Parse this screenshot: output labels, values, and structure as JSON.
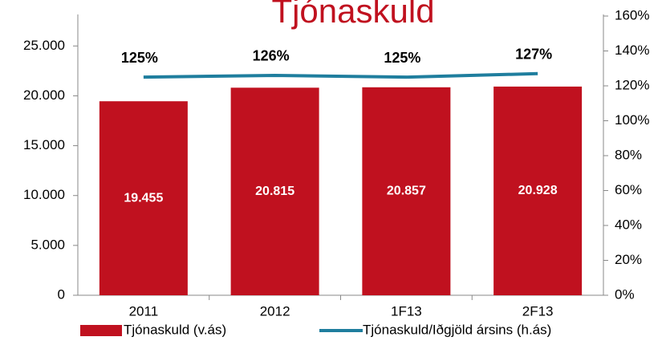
{
  "chart_data": {
    "type": "bar",
    "title": "Tjónaskuld",
    "categories": [
      "2011",
      "2012",
      "1F13",
      "2F13"
    ],
    "series": [
      {
        "name": "Tjónaskuld (v.ás)",
        "type": "bar",
        "color": "#c0111f",
        "values": [
          19455,
          20815,
          20857,
          20928
        ],
        "value_labels": [
          "19.455",
          "20.815",
          "20.857",
          "20.928"
        ]
      },
      {
        "name": "Tjónaskuld/Iðgjöld ársins (h.ás)",
        "type": "line",
        "axis": "y2",
        "color": "#1f7e9e",
        "values": [
          125,
          126,
          125,
          127
        ],
        "value_labels": [
          "125%",
          "126%",
          "125%",
          "127%"
        ]
      }
    ],
    "ylim": [
      0,
      28000
    ],
    "yticks": [
      {
        "value": 0,
        "label": "0"
      },
      {
        "value": 5000,
        "label": "5.000"
      },
      {
        "value": 10000,
        "label": "10.000"
      },
      {
        "value": 15000,
        "label": "15.000"
      },
      {
        "value": 20000,
        "label": "20.000"
      },
      {
        "value": 25000,
        "label": "25.000"
      }
    ],
    "y2lim": [
      0,
      160
    ],
    "y2ticks": [
      {
        "value": 0,
        "label": "0%"
      },
      {
        "value": 20,
        "label": "20%"
      },
      {
        "value": 40,
        "label": "40%"
      },
      {
        "value": 60,
        "label": "60%"
      },
      {
        "value": 80,
        "label": "80%"
      },
      {
        "value": 100,
        "label": "100%"
      },
      {
        "value": 120,
        "label": "120%"
      },
      {
        "value": 140,
        "label": "140%"
      },
      {
        "value": 160,
        "label": "160%"
      }
    ],
    "legend": "bottom"
  }
}
